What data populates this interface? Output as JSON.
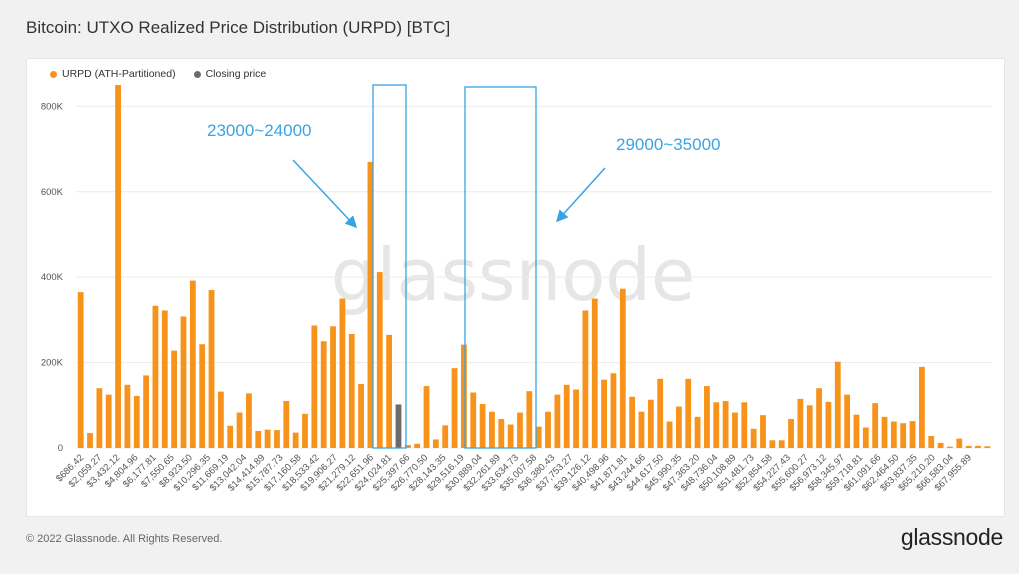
{
  "header": {
    "title": "Bitcoin: UTXO Realized Price Distribution (URPD) [BTC]"
  },
  "footer": {
    "copyright": "© 2022 Glassnode. All Rights Reserved.",
    "brand": "glassnode"
  },
  "watermark": "glassnode",
  "colors": {
    "bar": "#f7931a",
    "closing": "#6b6b6b",
    "annotation": "#3aa3e3",
    "grid": "#ececec"
  },
  "annotations": [
    {
      "label": "23000~24000"
    },
    {
      "label": "29000~35000"
    }
  ],
  "chart_data": {
    "type": "bar",
    "title": "Bitcoin: UTXO Realized Price Distribution (URPD) [BTC]",
    "xlabel": "",
    "ylabel": "",
    "ylim": [
      0,
      850000
    ],
    "yticks": [
      0,
      200000,
      400000,
      600000,
      800000
    ],
    "ytick_labels": [
      "0",
      "200K",
      "400K",
      "600K",
      "800K"
    ],
    "grid": true,
    "legend_position": "top-left",
    "legend": [
      "URPD (ATH-Partitioned)",
      "Closing price"
    ],
    "xtick_labels": [
      "$686.42",
      "$2,059.27",
      "$3,432.12",
      "$4,804.96",
      "$6,177.81",
      "$7,550.65",
      "$8,923.50",
      "$10,296.35",
      "$11,669.19",
      "$13,042.04",
      "$14,414.89",
      "$15,787.73",
      "$17,160.58",
      "$18,533.42",
      "$19,906.27",
      "$21,279.12",
      "$22,651.96",
      "$24,024.81",
      "$25,397.66",
      "$26,770.50",
      "$28,143.35",
      "$29,516.19",
      "$30,889.04",
      "$32,261.89",
      "$33,634.73",
      "$35,007.58",
      "$36,380.43",
      "$37,753.27",
      "$39,126.12",
      "$40,498.96",
      "$41,871.81",
      "$43,244.66",
      "$44,617.50",
      "$45,990.35",
      "$47,363.20",
      "$48,736.04",
      "$50,108.89",
      "$51,481.73",
      "$52,854.58",
      "$54,227.43",
      "$55,600.27",
      "$56,973.12",
      "$58,345.97",
      "$59,718.81",
      "$61,091.66",
      "$62,464.50",
      "$63,837.35",
      "$65,210.20",
      "$66,583.04",
      "$67,955.89"
    ],
    "series": [
      {
        "name": "URPD (ATH-Partitioned)",
        "values": [
          365000,
          35000,
          140000,
          125000,
          850000,
          148000,
          122000,
          170000,
          333000,
          322000,
          228000,
          308000,
          392000,
          243000,
          370000,
          132000,
          52000,
          83000,
          128000,
          40000,
          43000,
          42000,
          110000,
          36000,
          80000,
          287000,
          250000,
          285000,
          350000,
          267000,
          150000,
          670000,
          412000,
          265000,
          0,
          7000,
          10000,
          145000,
          20000,
          53000,
          187000,
          242000,
          130000,
          103000,
          85000,
          68000,
          55000,
          83000,
          133000,
          50000,
          85000,
          125000,
          148000,
          137000,
          322000,
          350000,
          160000,
          175000,
          373000,
          120000,
          85000,
          113000,
          162000,
          62000,
          97000,
          162000,
          73000,
          145000,
          107000,
          110000,
          83000,
          107000,
          45000,
          77000,
          18000,
          18000,
          68000,
          115000,
          100000,
          140000,
          108000,
          202000,
          125000,
          78000,
          48000,
          105000,
          73000,
          62000,
          58000,
          63000,
          190000,
          28000,
          12000,
          3000,
          22000,
          5000,
          5000,
          4000
        ]
      },
      {
        "name": "Closing price",
        "values": [
          0,
          0,
          0,
          0,
          0,
          0,
          0,
          0,
          0,
          0,
          0,
          0,
          0,
          0,
          0,
          0,
          0,
          0,
          0,
          0,
          0,
          0,
          0,
          0,
          0,
          0,
          0,
          0,
          0,
          0,
          0,
          0,
          0,
          0,
          102000,
          0,
          0,
          0,
          0,
          0,
          0,
          0,
          0,
          0,
          0,
          0,
          0,
          0,
          0,
          0,
          0,
          0,
          0,
          0,
          0,
          0,
          0,
          0,
          0,
          0,
          0,
          0,
          0,
          0,
          0,
          0,
          0,
          0,
          0,
          0,
          0,
          0,
          0,
          0,
          0,
          0,
          0,
          0,
          0,
          0,
          0,
          0,
          0,
          0,
          0,
          0,
          0,
          0,
          0,
          0,
          0,
          0,
          0,
          0,
          0,
          0,
          0,
          0
        ]
      }
    ]
  }
}
